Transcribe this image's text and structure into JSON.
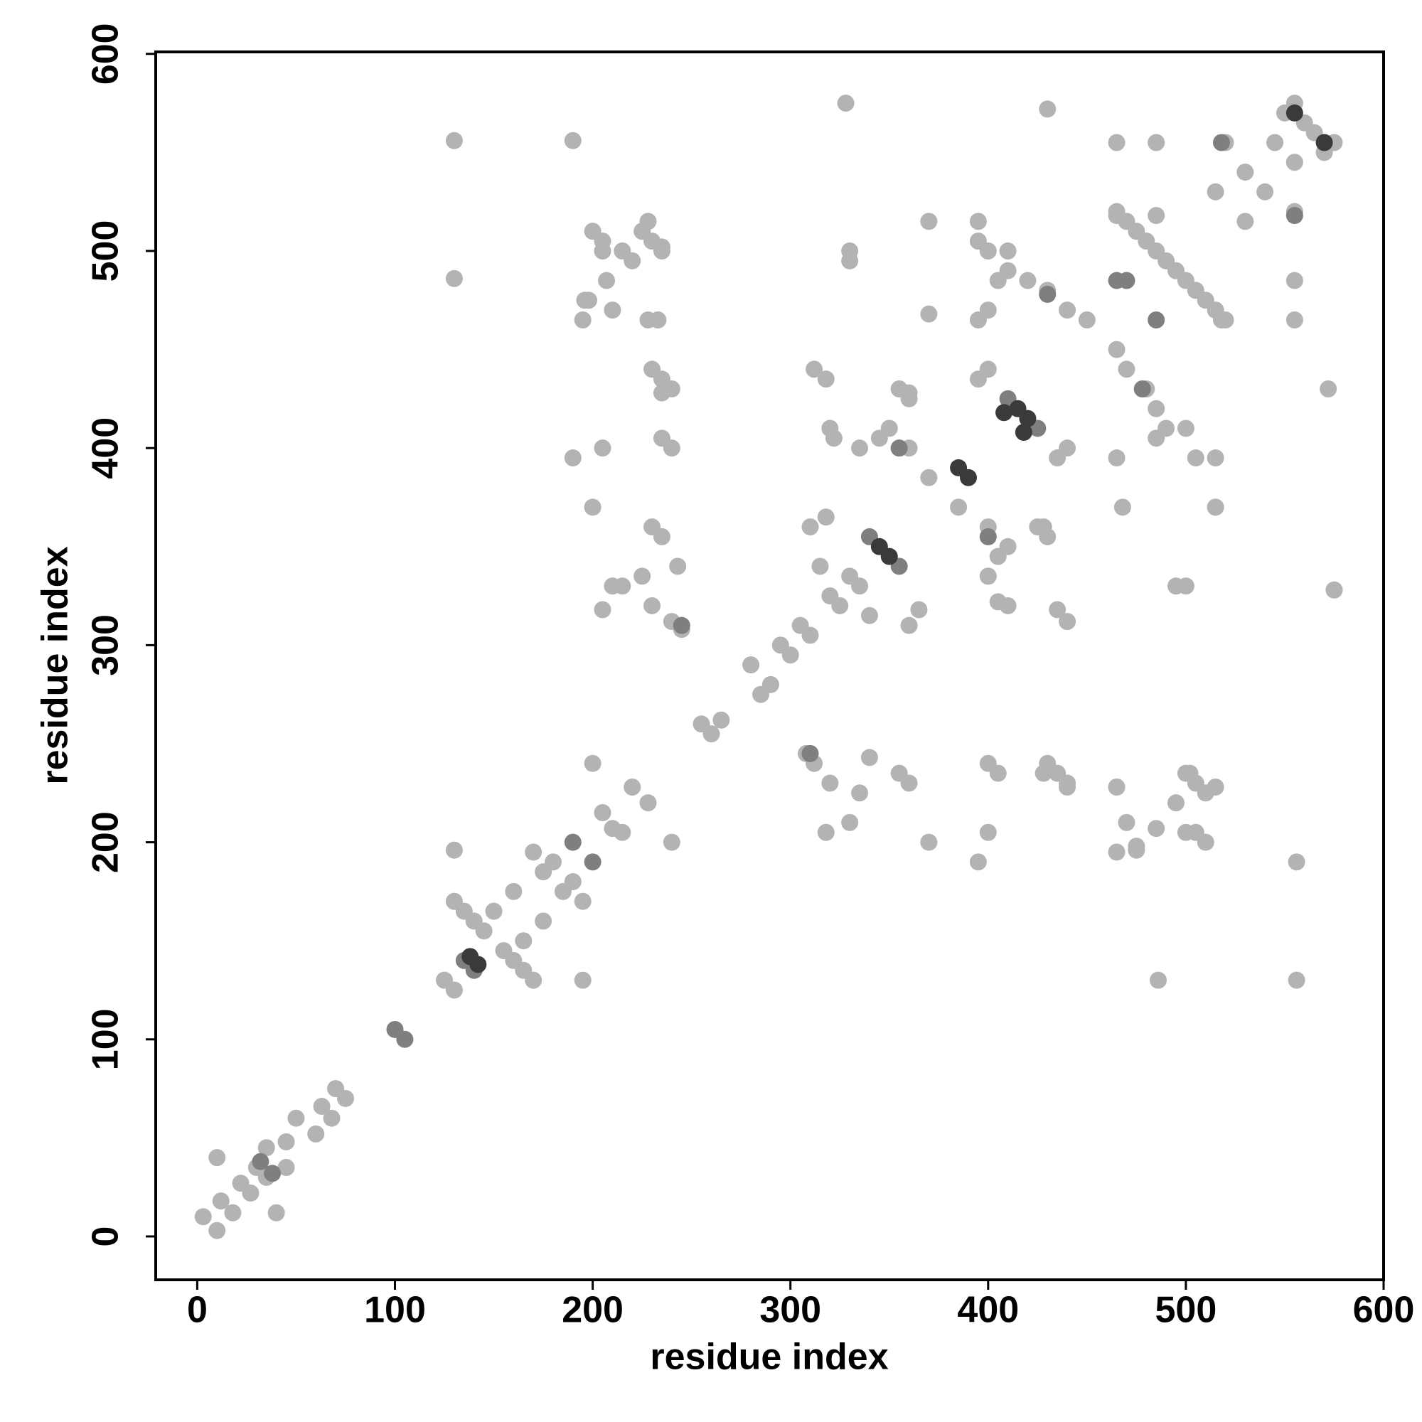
{
  "chart_data": {
    "type": "scatter",
    "xlabel": "residue index",
    "ylabel": "residue index",
    "xlim": [
      -21,
      600
    ],
    "ylim": [
      -22,
      601
    ],
    "xticks": [
      0,
      100,
      200,
      300,
      400,
      500,
      600
    ],
    "yticks": [
      0,
      100,
      200,
      300,
      400,
      500,
      600
    ],
    "series": [
      {
        "color": "#b3b3b3",
        "x": [
          3,
          10,
          12,
          18,
          22,
          27,
          30,
          35,
          35,
          45,
          45,
          50,
          60,
          63,
          68,
          70,
          75,
          10,
          40,
          130,
          170,
          140,
          160,
          150,
          165,
          155,
          145,
          160,
          175,
          170,
          195,
          180,
          190,
          185,
          175,
          195,
          130,
          125,
          130,
          135,
          165,
          200,
          240,
          205,
          215,
          210,
          220,
          228,
          255,
          260,
          265,
          280,
          290,
          285,
          295,
          300,
          305,
          310,
          130,
          556,
          130,
          486,
          190,
          556,
          200,
          510,
          205,
          500,
          215,
          220,
          495,
          230,
          505,
          235,
          502,
          198,
          475,
          195,
          465,
          228,
          465,
          233,
          207,
          485,
          230,
          440,
          235,
          435,
          240,
          430,
          235,
          405,
          240,
          400,
          190,
          395,
          205,
          400,
          200,
          370,
          230,
          360,
          235,
          355,
          210,
          330,
          215,
          225,
          335,
          230,
          320,
          240,
          312,
          245,
          308,
          205,
          318,
          243,
          340,
          310,
          360,
          315,
          340,
          320,
          325,
          335,
          330,
          330,
          500,
          328,
          575,
          322,
          405,
          312,
          440,
          318,
          435,
          335,
          400,
          355,
          430,
          360,
          425,
          350,
          410,
          360,
          400,
          370,
          385,
          365,
          318,
          395,
          435,
          400,
          440,
          395,
          505,
          400,
          405,
          485,
          410,
          490,
          420,
          485,
          430,
          480,
          440,
          470,
          450,
          465,
          395,
          465,
          400,
          370,
          515,
          370,
          468,
          405,
          345,
          400,
          355,
          400,
          410,
          320,
          428,
          360,
          430,
          572,
          428,
          235,
          440,
          465,
          555,
          485,
          555,
          465,
          518,
          475,
          510,
          485,
          500,
          495,
          490,
          505,
          480,
          515,
          470,
          520,
          465,
          485,
          515,
          530,
          530,
          540,
          520,
          555,
          550,
          570,
          560,
          565,
          575,
          555,
          545,
          555,
          575,
          515,
          395,
          515,
          500,
          410,
          495,
          330,
          500,
          235,
          510,
          225,
          505,
          205,
          515,
          228,
          470,
          210,
          475,
          196,
          465
        ],
        "y": [
          10,
          3,
          18,
          12,
          27,
          22,
          35,
          30,
          45,
          35,
          48,
          60,
          52,
          66,
          60,
          75,
          70,
          40,
          12,
          170,
          130,
          160,
          140,
          165,
          150,
          145,
          155,
          175,
          160,
          195,
          170,
          190,
          180,
          175,
          185,
          130,
          196,
          130,
          125,
          165,
          135,
          240,
          200,
          215,
          205,
          207,
          228,
          220,
          260,
          255,
          262,
          290,
          280,
          275,
          300,
          295,
          310,
          305,
          556,
          130,
          486,
          130,
          556,
          190,
          510,
          200,
          500,
          205,
          500,
          495,
          220,
          505,
          230,
          502,
          235,
          475,
          198,
          465,
          195,
          465,
          228,
          465,
          485,
          207,
          440,
          230,
          435,
          235,
          430,
          240,
          405,
          235,
          400,
          240,
          395,
          190,
          400,
          205,
          370,
          200,
          360,
          230,
          355,
          235,
          330,
          210,
          330,
          335,
          225,
          320,
          230,
          312,
          240,
          308,
          245,
          318,
          205,
          340,
          243,
          360,
          310,
          340,
          315,
          325,
          320,
          330,
          335,
          500,
          330,
          575,
          328,
          405,
          322,
          440,
          312,
          435,
          318,
          400,
          335,
          430,
          355,
          425,
          360,
          410,
          350,
          400,
          360,
          385,
          370,
          318,
          365,
          435,
          395,
          440,
          400,
          505,
          395,
          500,
          485,
          405,
          490,
          410,
          485,
          420,
          480,
          430,
          470,
          440,
          465,
          450,
          465,
          395,
          470,
          515,
          370,
          468,
          370,
          345,
          405,
          355,
          400,
          335,
          320,
          410,
          360,
          428,
          572,
          430,
          235,
          428,
          228,
          555,
          465,
          555,
          485,
          518,
          465,
          510,
          475,
          500,
          485,
          490,
          495,
          480,
          505,
          470,
          515,
          465,
          520,
          518,
          530,
          515,
          540,
          530,
          555,
          520,
          570,
          550,
          565,
          560,
          555,
          575,
          555,
          545,
          328,
          395,
          515,
          370,
          410,
          500,
          330,
          495,
          235,
          500,
          225,
          510,
          205,
          505,
          228,
          515,
          210,
          470,
          196,
          475,
          228
        ]
      },
      {
        "color": "#7f7f7f",
        "x": [
          32,
          38,
          100,
          105,
          135,
          140,
          190,
          200,
          410,
          425,
          340,
          355,
          355,
          400,
          310,
          245,
          518,
          555,
          485,
          465,
          430,
          478,
          470
        ],
        "y": [
          38,
          32,
          105,
          100,
          140,
          135,
          200,
          190,
          425,
          410,
          355,
          340,
          400,
          355,
          245,
          310,
          555,
          518,
          465,
          485,
          478,
          430,
          485
        ]
      },
      {
        "color": "#3a3a3a",
        "x": [
          138,
          142,
          385,
          390,
          420,
          415,
          408,
          418,
          345,
          350,
          555,
          570
        ],
        "y": [
          142,
          138,
          390,
          385,
          415,
          420,
          418,
          408,
          350,
          345,
          570,
          555
        ]
      }
    ]
  }
}
